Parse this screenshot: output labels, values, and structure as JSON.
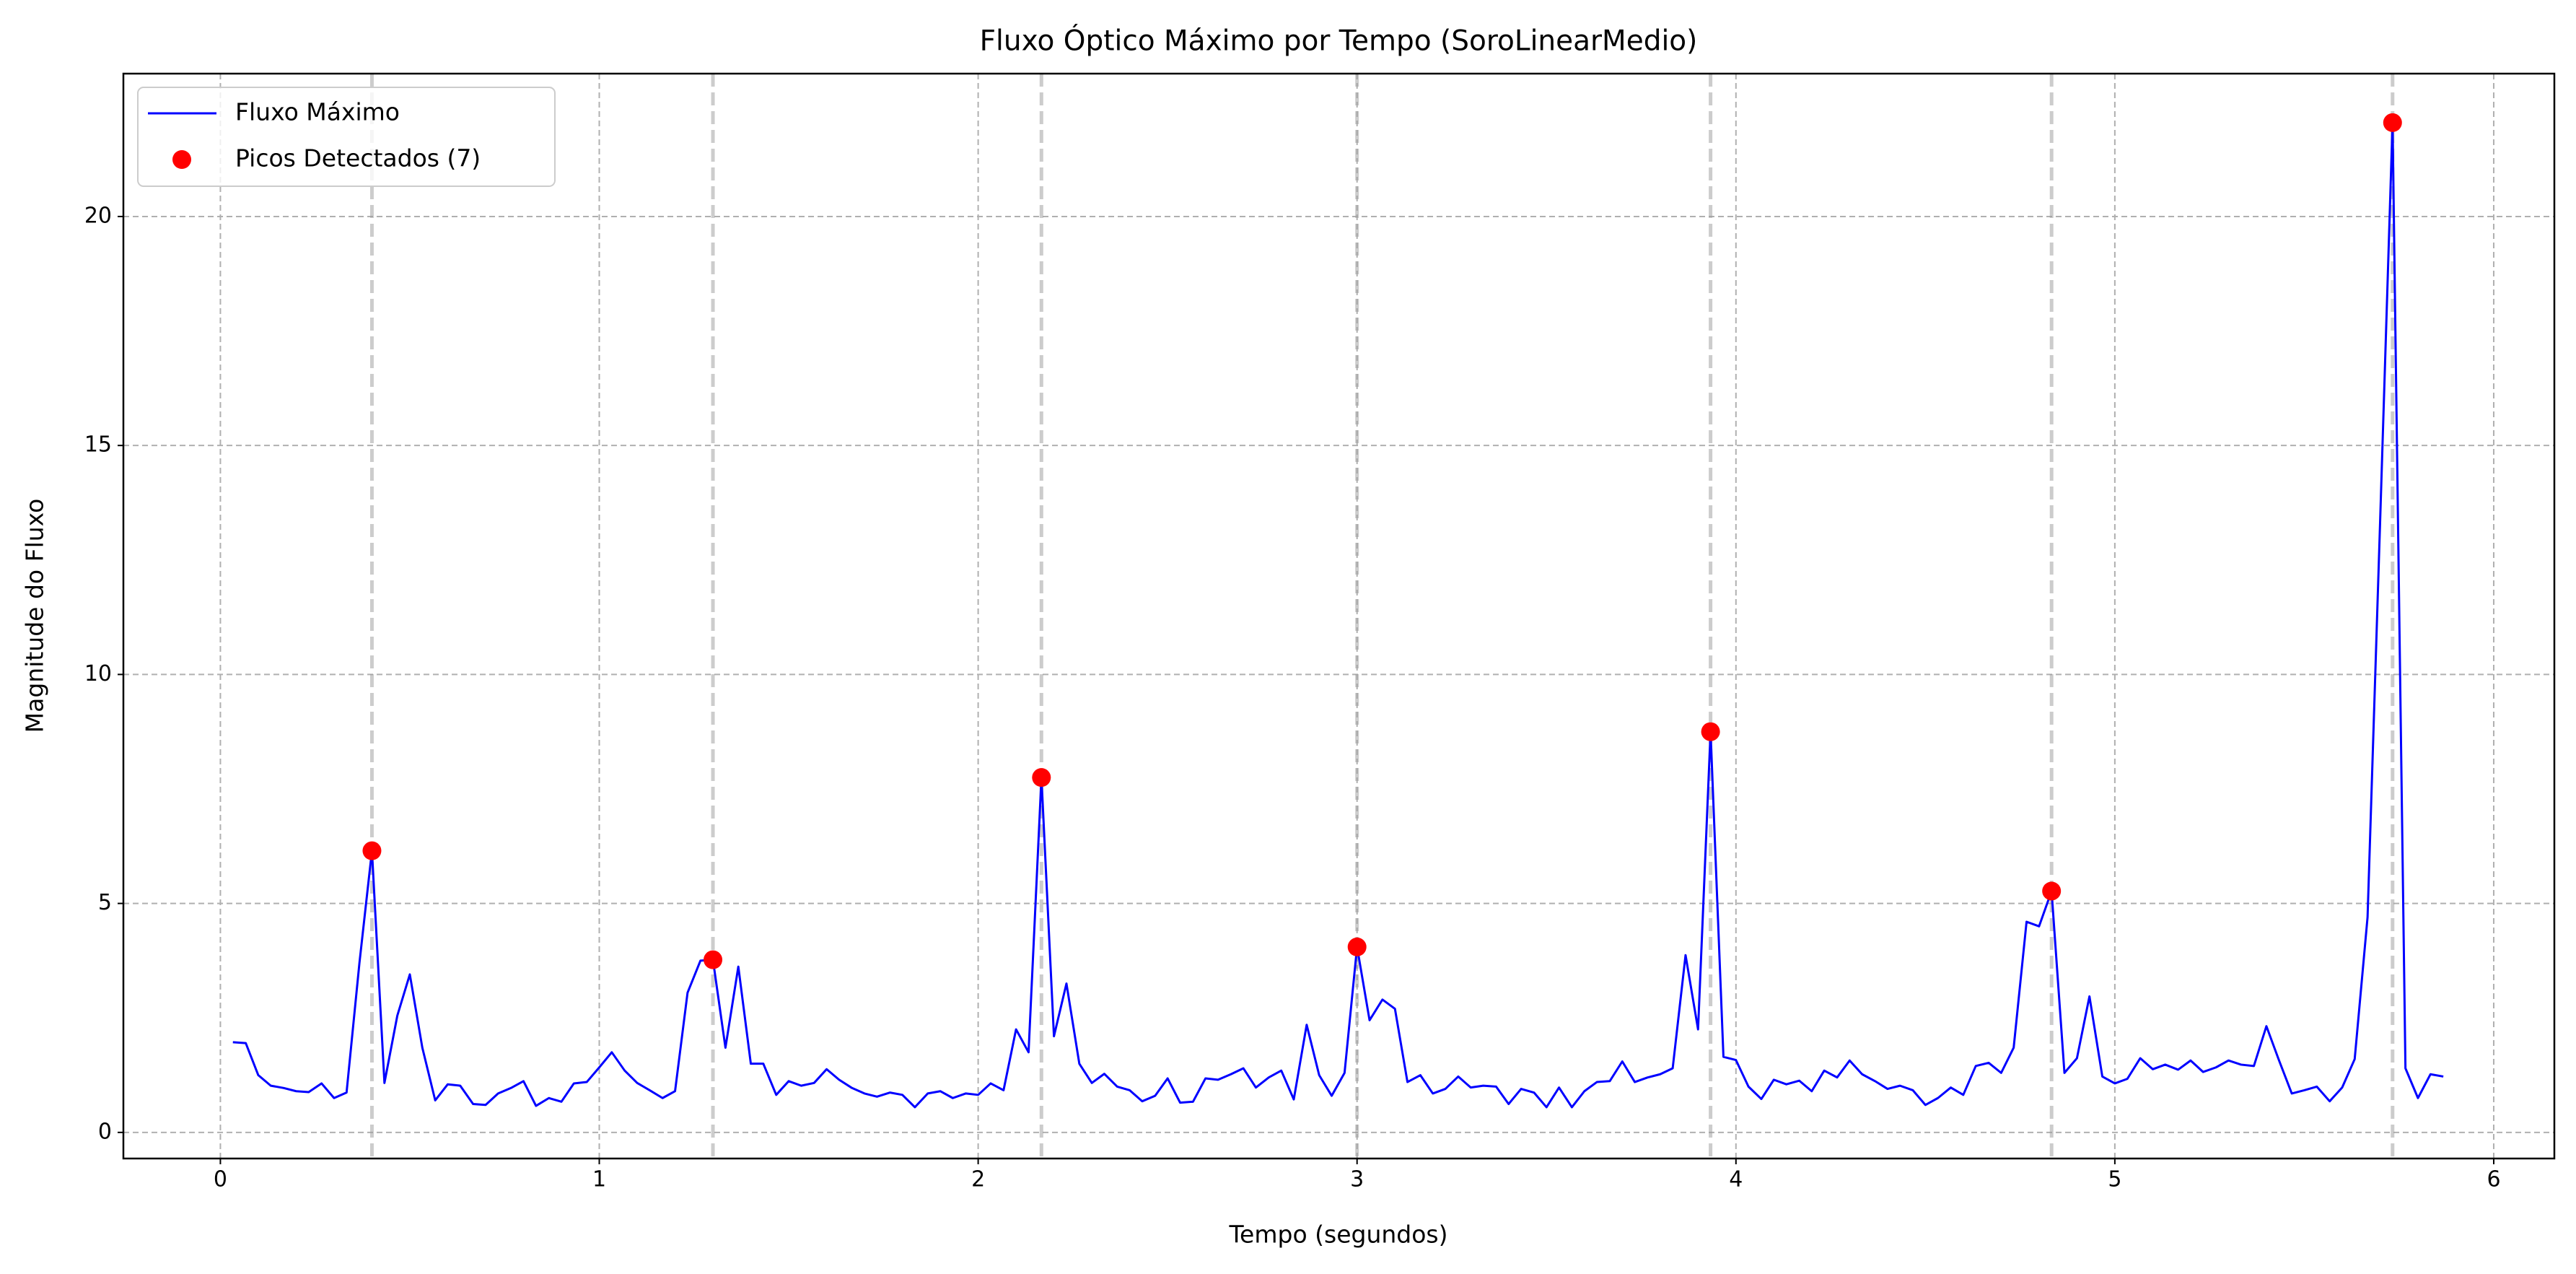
{
  "chart_data": {
    "type": "line",
    "title": "Fluxo Óptico Máximo por Tempo (SoroLinearMedio)",
    "x_label": "Tempo (segundos)",
    "y_label": "Magnitude do Fluxo",
    "xlim": [
      -0.256,
      6.16
    ],
    "ylim": [
      -0.57,
      23.12
    ],
    "xticks": [
      0,
      1,
      2,
      3,
      4,
      5,
      6
    ],
    "yticks": [
      0,
      5,
      10,
      15,
      20
    ],
    "grid": true,
    "legend": "upper left",
    "series": [
      {
        "name": "Fluxo Máximo",
        "color": "#0000ff",
        "style": "line",
        "x": [
          0.033,
          0.067,
          0.1,
          0.133,
          0.167,
          0.2,
          0.233,
          0.267,
          0.3,
          0.333,
          0.367,
          0.4,
          0.433,
          0.467,
          0.5,
          0.533,
          0.567,
          0.6,
          0.633,
          0.667,
          0.7,
          0.733,
          0.767,
          0.8,
          0.833,
          0.867,
          0.9,
          0.933,
          0.967,
          1,
          1.033,
          1.067,
          1.1,
          1.133,
          1.167,
          1.2,
          1.233,
          1.267,
          1.3,
          1.333,
          1.367,
          1.4,
          1.433,
          1.467,
          1.5,
          1.533,
          1.567,
          1.6,
          1.633,
          1.667,
          1.7,
          1.733,
          1.767,
          1.8,
          1.833,
          1.867,
          1.9,
          1.933,
          1.967,
          2,
          2.033,
          2.067,
          2.1,
          2.133,
          2.167,
          2.2,
          2.233,
          2.267,
          2.3,
          2.333,
          2.367,
          2.4,
          2.433,
          2.467,
          2.5,
          2.533,
          2.567,
          2.6,
          2.633,
          2.667,
          2.7,
          2.733,
          2.767,
          2.8,
          2.833,
          2.867,
          2.9,
          2.933,
          2.967,
          3,
          3.033,
          3.067,
          3.1,
          3.133,
          3.167,
          3.2,
          3.233,
          3.267,
          3.3,
          3.333,
          3.367,
          3.4,
          3.433,
          3.467,
          3.5,
          3.533,
          3.567,
          3.6,
          3.633,
          3.667,
          3.7,
          3.733,
          3.767,
          3.8,
          3.833,
          3.867,
          3.9,
          3.933,
          3.967,
          4,
          4.033,
          4.067,
          4.1,
          4.133,
          4.167,
          4.2,
          4.233,
          4.267,
          4.3,
          4.333,
          4.367,
          4.4,
          4.433,
          4.467,
          4.5,
          4.533,
          4.567,
          4.6,
          4.633,
          4.667,
          4.7,
          4.733,
          4.767,
          4.8,
          4.833,
          4.867,
          4.9,
          4.933,
          4.967,
          5,
          5.033,
          5.067,
          5.1,
          5.133,
          5.167,
          5.2,
          5.233,
          5.267,
          5.3,
          5.333,
          5.367,
          5.4,
          5.433,
          5.467,
          5.5,
          5.533,
          5.567,
          5.6,
          5.633,
          5.667,
          5.7,
          5.733,
          5.767,
          5.8,
          5.833,
          5.867
        ],
        "values": [
          1.97,
          1.95,
          1.25,
          1.02,
          0.97,
          0.9,
          0.88,
          1.07,
          0.75,
          0.87,
          3.7,
          6.15,
          1.08,
          2.55,
          3.45,
          1.85,
          0.7,
          1.05,
          1.02,
          0.62,
          0.6,
          0.85,
          0.97,
          1.12,
          0.58,
          0.75,
          0.67,
          1.07,
          1.1,
          1.42,
          1.75,
          1.35,
          1.08,
          0.92,
          0.75,
          0.9,
          3.05,
          3.75,
          3.77,
          1.85,
          3.62,
          1.5,
          1.5,
          0.82,
          1.12,
          1.02,
          1.08,
          1.38,
          1.15,
          0.97,
          0.85,
          0.78,
          0.87,
          0.82,
          0.55,
          0.85,
          0.9,
          0.75,
          0.85,
          0.82,
          1.07,
          0.92,
          2.25,
          1.75,
          7.75,
          2.1,
          3.25,
          1.5,
          1.08,
          1.28,
          1.0,
          0.92,
          0.68,
          0.8,
          1.18,
          0.65,
          0.67,
          1.18,
          1.15,
          1.27,
          1.4,
          0.98,
          1.2,
          1.35,
          0.72,
          2.35,
          1.25,
          0.8,
          1.3,
          4.05,
          2.45,
          2.9,
          2.7,
          1.1,
          1.25,
          0.85,
          0.95,
          1.22,
          0.98,
          1.02,
          1.0,
          0.62,
          0.95,
          0.87,
          0.55,
          0.98,
          0.55,
          0.9,
          1.1,
          1.12,
          1.55,
          1.1,
          1.2,
          1.27,
          1.4,
          3.87,
          2.25,
          8.75,
          1.65,
          1.58,
          1.0,
          0.73,
          1.15,
          1.05,
          1.13,
          0.9,
          1.35,
          1.2,
          1.57,
          1.27,
          1.12,
          0.95,
          1.02,
          0.92,
          0.6,
          0.75,
          0.98,
          0.82,
          1.45,
          1.52,
          1.3,
          1.85,
          4.6,
          4.5,
          5.27,
          1.3,
          1.62,
          2.97,
          1.22,
          1.07,
          1.17,
          1.62,
          1.38,
          1.48,
          1.37,
          1.57,
          1.32,
          1.42,
          1.57,
          1.48,
          1.45,
          2.32,
          1.58,
          0.85,
          0.92,
          1.0,
          0.68,
          0.98,
          1.6,
          4.7,
          13.3,
          22.05,
          1.4,
          0.75,
          1.27,
          1.22
        ]
      },
      {
        "name": "Picos Detectados (7)",
        "color": "#ff0000",
        "style": "marker",
        "peak_lines": true,
        "x": [
          0.4,
          1.3,
          2.167,
          3.0,
          3.933,
          4.833,
          5.733
        ],
        "values": [
          6.15,
          3.77,
          7.75,
          4.05,
          8.75,
          5.27,
          22.05
        ]
      }
    ]
  }
}
